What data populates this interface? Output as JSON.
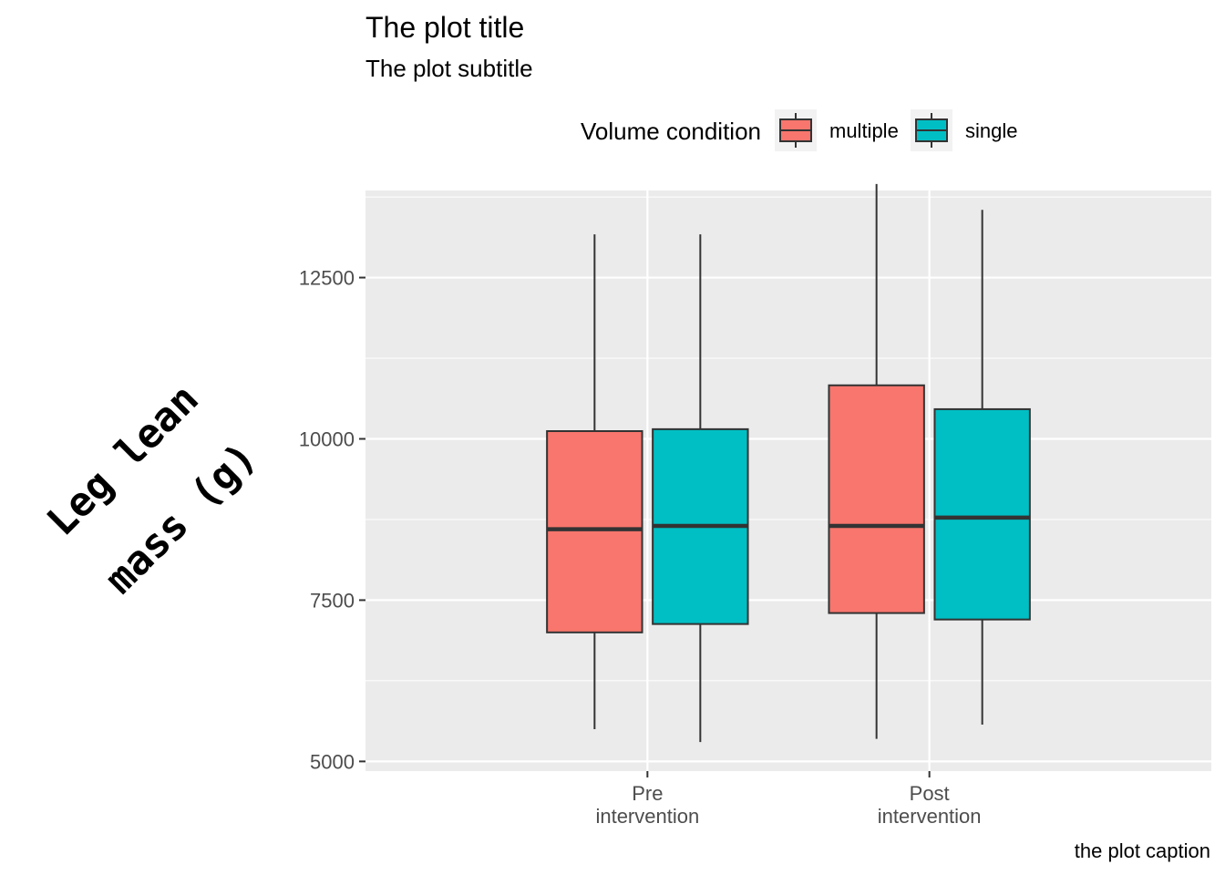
{
  "chart_data": {
    "type": "boxplot",
    "title": "The plot title",
    "subtitle": "The plot subtitle",
    "caption": "the plot caption",
    "ylabel_lines": [
      "Leg lean",
      "mass (g)"
    ],
    "legend": {
      "title": "Volume condition",
      "position": "top",
      "entries": [
        {
          "name": "multiple",
          "color": "#F8766D"
        },
        {
          "name": "single",
          "color": "#00BFC4"
        }
      ]
    },
    "categories": [
      {
        "lines": [
          "Pre",
          "intervention"
        ]
      },
      {
        "lines": [
          "Post",
          "intervention"
        ]
      }
    ],
    "yticks": [
      5000,
      7500,
      10000,
      12500
    ],
    "ylim": [
      4850,
      13850
    ],
    "series": [
      {
        "name": "multiple",
        "color": "#F8766D",
        "boxes": [
          {
            "min": 5500,
            "q1": 7000,
            "median": 8600,
            "q3": 10120,
            "max": 13170
          },
          {
            "min": 5350,
            "q1": 7300,
            "median": 8650,
            "q3": 10830,
            "max": 13950
          }
        ]
      },
      {
        "name": "single",
        "color": "#00BFC4",
        "boxes": [
          {
            "min": 5300,
            "q1": 7130,
            "median": 8650,
            "q3": 10150,
            "max": 13170
          },
          {
            "min": 5570,
            "q1": 7200,
            "median": 8780,
            "q3": 10460,
            "max": 13550
          }
        ]
      }
    ],
    "grid": true,
    "panel_background": "#EBEBEB"
  }
}
